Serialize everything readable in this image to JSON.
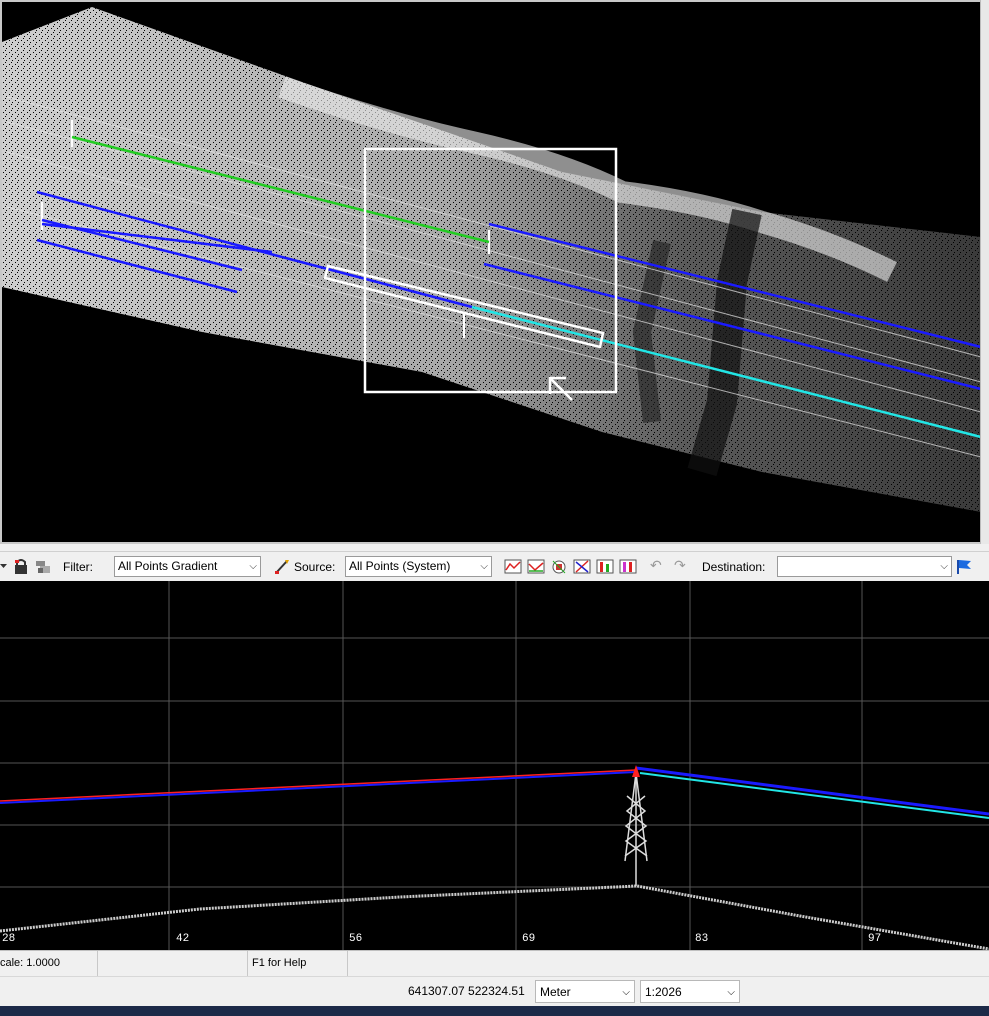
{
  "toolbar": {
    "filter_label": "Filter:",
    "filter_value": "All Points Gradient",
    "source_label": "Source:",
    "source_value": "All Points (System)",
    "destination_label": "Destination:",
    "destination_value": "",
    "icons": [
      "lock-icon",
      "layer-stack-icon",
      "pencil-source-icon",
      "classify-icon-1",
      "classify-icon-2",
      "classify-icon-3",
      "classify-icon-4",
      "classify-icon-5",
      "classify-icon-6",
      "undo-icon",
      "redo-icon",
      "flag-icon"
    ]
  },
  "profile": {
    "axis_labels": [
      "28",
      "42",
      "56",
      "69",
      "83",
      "97"
    ]
  },
  "status": {
    "scale": "cale: 1.0000",
    "help": "F1 for Help"
  },
  "coords": {
    "position": "641307.07 522324.51",
    "unit": "Meter",
    "scale_ratio": "1:2026"
  },
  "taskbar": {
    "items": [
      "...",
      "...",
      "...",
      "...",
      "...",
      "..."
    ]
  },
  "colors": {
    "green_line": "#22cc22",
    "blue_line": "#1a1aff",
    "cyan_line": "#22e6e6",
    "red_line": "#ff2020",
    "points": "#d8d8d8"
  }
}
